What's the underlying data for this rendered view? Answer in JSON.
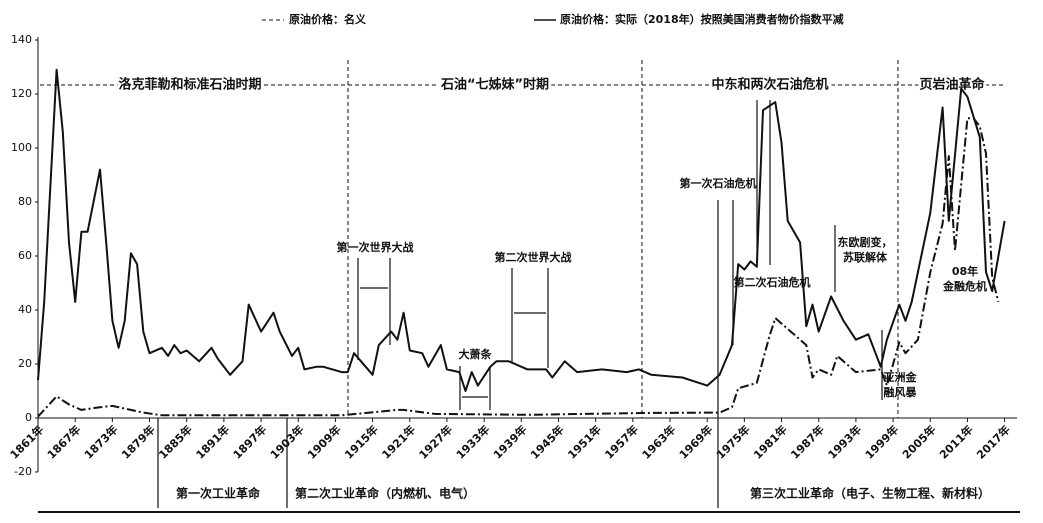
{
  "chart_data": {
    "type": "line",
    "legend": [
      "原油价格：名义",
      "原油价格：实际（2018年）按照美国消费者物价指数平减"
    ],
    "xlim": [
      1861,
      2019
    ],
    "xticks": [
      {
        "value": 1861,
        "label": "1861年"
      },
      {
        "value": 1867,
        "label": "1867年"
      },
      {
        "value": 1873,
        "label": "1873年"
      },
      {
        "value": 1879,
        "label": "1879年"
      },
      {
        "value": 1885,
        "label": "1885年"
      },
      {
        "value": 1891,
        "label": "1891年"
      },
      {
        "value": 1897,
        "label": "1897年"
      },
      {
        "value": 1903,
        "label": "1903年"
      },
      {
        "value": 1909,
        "label": "1909年"
      },
      {
        "value": 1915,
        "label": "1915年"
      },
      {
        "value": 1921,
        "label": "1921年"
      },
      {
        "value": 1927,
        "label": "1927年"
      },
      {
        "value": 1933,
        "label": "1933年"
      },
      {
        "value": 1939,
        "label": "1939年"
      },
      {
        "value": 1945,
        "label": "1945年"
      },
      {
        "value": 1951,
        "label": "1951年"
      },
      {
        "value": 1957,
        "label": "1957年"
      },
      {
        "value": 1963,
        "label": "1963年"
      },
      {
        "value": 1969,
        "label": "1969年"
      },
      {
        "value": 1975,
        "label": "1975年"
      },
      {
        "value": 1981,
        "label": "1981年"
      },
      {
        "value": 1987,
        "label": "1987年"
      },
      {
        "value": 1993,
        "label": "1993年"
      },
      {
        "value": 1999,
        "label": "1999年"
      },
      {
        "value": 2005,
        "label": "2005年"
      },
      {
        "value": 2011,
        "label": "2011年"
      },
      {
        "value": 2017,
        "label": "2017年"
      }
    ],
    "ylim": [
      -20,
      140
    ],
    "yticks": [
      -20,
      0,
      20,
      40,
      60,
      80,
      100,
      120,
      140
    ],
    "series": [
      {
        "name": "原油价格：名义",
        "color": "#111111",
        "line_style": "dashed",
        "x": [
          1861,
          1862,
          1864,
          1866,
          1868,
          1871,
          1873,
          1876,
          1878,
          1881,
          1890,
          1900,
          1910,
          1919,
          1920,
          1925,
          1940,
          1960,
          1971,
          1973,
          1974,
          1977,
          1979,
          1980,
          1982,
          1985,
          1986,
          1987,
          1989,
          1990,
          1993,
          1997,
          1998,
          2000,
          2001,
          2003,
          2005,
          2007,
          2008,
          2009,
          2011,
          2012,
          2013,
          2014,
          2015,
          2016
        ],
        "values": [
          0.5,
          3,
          8,
          5,
          3,
          4,
          4.5,
          3,
          2,
          1,
          1,
          1,
          1,
          3,
          3,
          1.5,
          1.2,
          1.9,
          2,
          4,
          11,
          13,
          30,
          37,
          33,
          27,
          15,
          18,
          16,
          23,
          17,
          18,
          12,
          28,
          24,
          29,
          54,
          72,
          97,
          62,
          111,
          111,
          108,
          98,
          52,
          43
        ]
      },
      {
        "name": "原油价格：实际（2018年）按照美国消费者物价指数平减",
        "color": "#111111",
        "line_style": "solid",
        "x": [
          1861,
          1862,
          1864,
          1865,
          1866,
          1867,
          1868,
          1869,
          1871,
          1872,
          1873,
          1874,
          1875,
          1876,
          1877,
          1878,
          1879,
          1881,
          1882,
          1883,
          1884,
          1885,
          1887,
          1889,
          1890,
          1892,
          1894,
          1895,
          1897,
          1899,
          1900,
          1902,
          1903,
          1904,
          1906,
          1907,
          1910,
          1911,
          1912,
          1915,
          1916,
          1918,
          1919,
          1920,
          1921,
          1923,
          1924,
          1926,
          1927,
          1929,
          1930,
          1931,
          1932,
          1934,
          1935,
          1937,
          1940,
          1943,
          1944,
          1946,
          1948,
          1952,
          1956,
          1958,
          1960,
          1965,
          1969,
          1971,
          1973,
          1974,
          1975,
          1976,
          1977,
          1978,
          1980,
          1981,
          1982,
          1984,
          1985,
          1986,
          1987,
          1989,
          1991,
          1993,
          1995,
          1997,
          1998,
          2000,
          2001,
          2002,
          2005,
          2007,
          2008,
          2010,
          2011,
          2013,
          2014,
          2015,
          2017
        ],
        "values": [
          14,
          43,
          129,
          106,
          65,
          43,
          69,
          69,
          92,
          65,
          36,
          26,
          36,
          61,
          57,
          32,
          24,
          26,
          23,
          27,
          24,
          25,
          21,
          26,
          22,
          16,
          21,
          42,
          32,
          39,
          32,
          23,
          26,
          18,
          19,
          19,
          17,
          17,
          24,
          16,
          27,
          32,
          29,
          39,
          25,
          24,
          19,
          27,
          18,
          17,
          10,
          17,
          12,
          19,
          21,
          21,
          18,
          18,
          15,
          21,
          17,
          18,
          17,
          18,
          16,
          15,
          12,
          16,
          27,
          57,
          55,
          58,
          56,
          114,
          117,
          102,
          73,
          65,
          34,
          42,
          32,
          45,
          36,
          29,
          31,
          19,
          29,
          42,
          36,
          43,
          76,
          115,
          73,
          122,
          119,
          104,
          54,
          47,
          73
        ]
      }
    ],
    "periods": [
      "洛克菲勒和标准石油时期",
      "石油“七姊妹”时期",
      "中东和两次石油危机",
      "页岩油革命"
    ],
    "events": {
      "wwi": "第一次世界大战",
      "depression": "大萧条",
      "wwii": "第二次世界大战",
      "oil1": "第一次石油危机",
      "oil2": "第二次石油危机",
      "ussr": [
        "东欧剧变，",
        "苏联解体"
      ],
      "asia": [
        "亚洲金",
        "融风暴"
      ],
      "gfc": [
        "08年",
        "金融危机"
      ]
    },
    "revolutions": [
      "第一次工业革命",
      "第二次工业革命（内燃机、电气）",
      "第三次工业革命（电子、生物工程、新材料）"
    ]
  }
}
